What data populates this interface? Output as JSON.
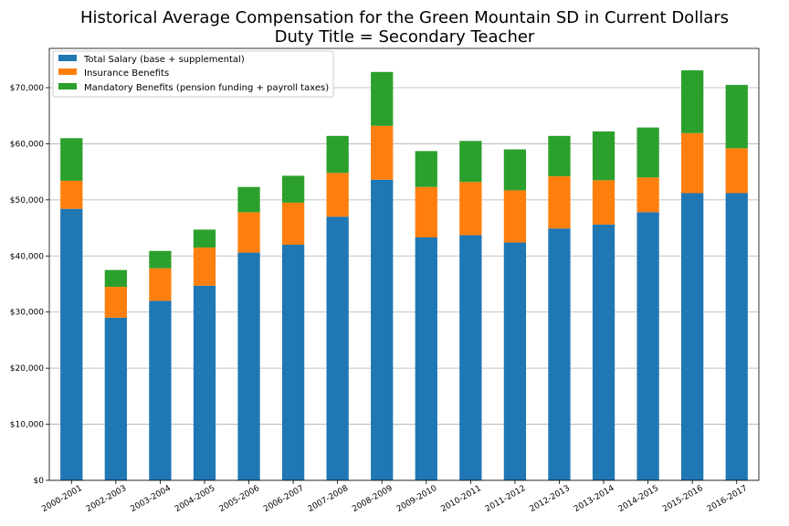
{
  "chart_data": {
    "type": "bar",
    "stacked": true,
    "title": "Historical Average Compensation for the Green Mountain SD in Current Dollars",
    "subtitle": "Duty Title = Secondary Teacher",
    "xlabel": "",
    "ylabel": "",
    "ylim": [
      0,
      77000
    ],
    "y_ticks": [
      0,
      10000,
      20000,
      30000,
      40000,
      50000,
      60000,
      70000
    ],
    "y_tick_labels": [
      "$0",
      "$10,000",
      "$20,000",
      "$30,000",
      "$40,000",
      "$50,000",
      "$60,000",
      "$70,000"
    ],
    "grid": "horizontal",
    "legend_position": "top-left",
    "categories": [
      "2000-2001",
      "2002-2003",
      "2003-2004",
      "2004-2005",
      "2005-2006",
      "2006-2007",
      "2007-2008",
      "2008-2009",
      "2009-2010",
      "2010-2011",
      "2011-2012",
      "2012-2013",
      "2013-2014",
      "2014-2015",
      "2015-2016",
      "2016-2017"
    ],
    "series": [
      {
        "name": "Total Salary (base + supplemental)",
        "color": "#1f77b4",
        "values": [
          48400,
          29000,
          32000,
          34700,
          40600,
          42000,
          47000,
          53600,
          43300,
          43700,
          42400,
          44900,
          45600,
          47800,
          51200,
          51200
        ]
      },
      {
        "name": "Insurance Benefits",
        "color": "#ff7f0e",
        "values": [
          5000,
          5500,
          5800,
          6800,
          7200,
          7500,
          7800,
          9600,
          9000,
          9500,
          9300,
          9300,
          7900,
          6200,
          10700,
          8000
        ]
      },
      {
        "name": "Mandatory Benefits (pension funding + payroll taxes)",
        "color": "#2ca02c",
        "values": [
          7600,
          3000,
          3100,
          3200,
          4500,
          4800,
          6600,
          9600,
          6400,
          7300,
          7300,
          7200,
          8700,
          8900,
          11200,
          11300
        ]
      }
    ]
  }
}
